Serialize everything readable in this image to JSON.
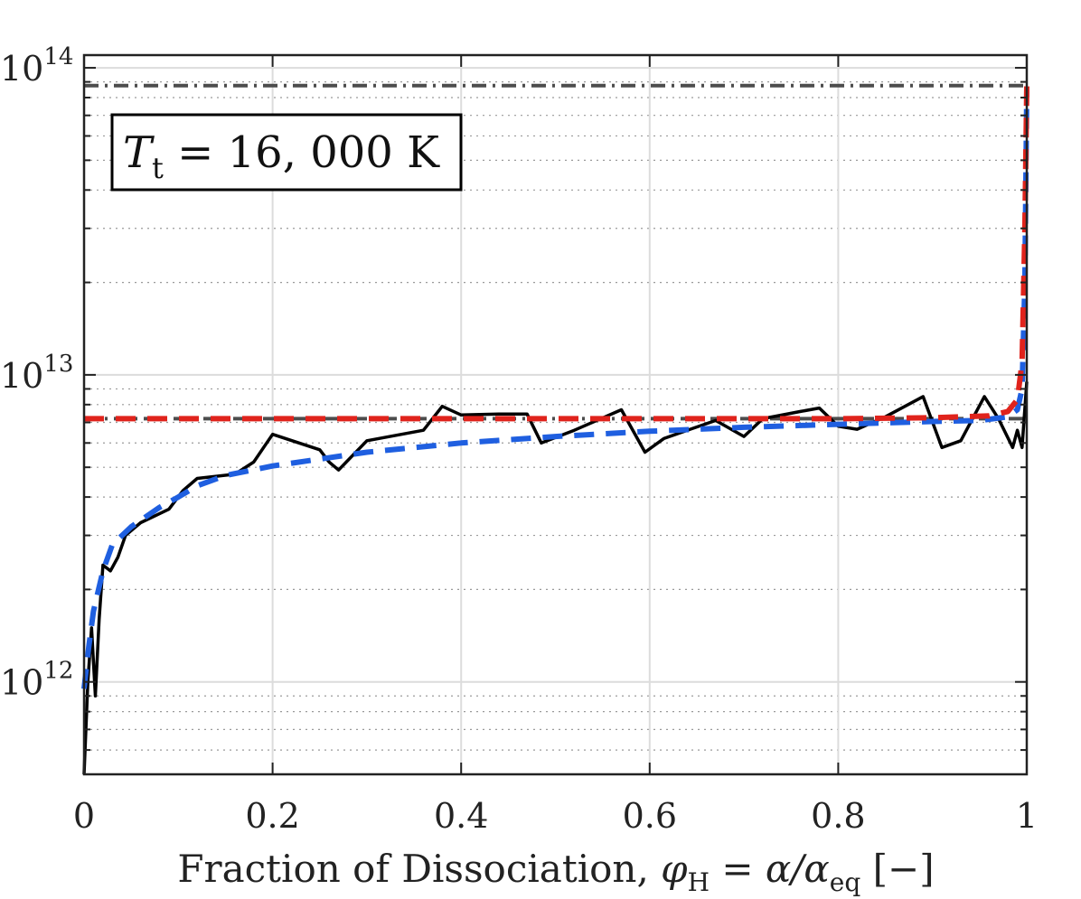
{
  "chart_data": {
    "type": "line",
    "xlabel_parts": {
      "main": "Fraction of Dissociation, ",
      "phi": "φ",
      "phi_sub": "H",
      "eq": " = α/α",
      "alpha_sub": "eq",
      "unit": " [−]"
    },
    "xlim": [
      0,
      1
    ],
    "ylim": [
      500000000000.0,
      110000000000000.0
    ],
    "yscale": "log",
    "x_ticks": [
      0,
      0.2,
      0.4,
      0.6,
      0.8,
      1
    ],
    "x_tick_labels": [
      "0",
      "0.2",
      "0.4",
      "0.6",
      "0.8",
      "1"
    ],
    "y_ticks": [
      1000000000000.0,
      10000000000000.0,
      100000000000000.0
    ],
    "y_tick_base": [
      "10",
      "10",
      "10"
    ],
    "y_tick_exp": [
      "12",
      "13",
      "14"
    ],
    "grid": true,
    "annotation": {
      "T": "T",
      "sub": "t",
      "rest": " = 16, 000 K"
    },
    "series": [
      {
        "name": "black-solid",
        "color": "#000000",
        "style": "solid",
        "x": [
          0,
          0.004,
          0.008,
          0.012,
          0.016,
          0.02,
          0.028,
          0.036,
          0.044,
          0.06,
          0.09,
          0.105,
          0.12,
          0.16,
          0.18,
          0.2,
          0.25,
          0.26,
          0.27,
          0.3,
          0.36,
          0.38,
          0.4,
          0.44,
          0.47,
          0.485,
          0.52,
          0.57,
          0.595,
          0.615,
          0.64,
          0.67,
          0.7,
          0.72,
          0.76,
          0.78,
          0.8,
          0.82,
          0.85,
          0.89,
          0.91,
          0.93,
          0.955,
          0.97,
          0.985,
          0.99,
          0.995,
          1
        ],
        "y": [
          500000000000.0,
          1000000000000.0,
          1500000000000.0,
          900000000000.0,
          1600000000000.0,
          2400000000000.0,
          2300000000000.0,
          2550000000000.0,
          3000000000000.0,
          3300000000000.0,
          3650000000000.0,
          4200000000000.0,
          4600000000000.0,
          4750000000000.0,
          5200000000000.0,
          6400000000000.0,
          5700000000000.0,
          5200000000000.0,
          4900000000000.0,
          6100000000000.0,
          6600000000000.0,
          7900000000000.0,
          7400000000000.0,
          7450000000000.0,
          7450000000000.0,
          6000000000000.0,
          6600000000000.0,
          7700000000000.0,
          5600000000000.0,
          6200000000000.0,
          6600000000000.0,
          7100000000000.0,
          6300000000000.0,
          7200000000000.0,
          7600000000000.0,
          7800000000000.0,
          6800000000000.0,
          6650000000000.0,
          7300000000000.0,
          8500000000000.0,
          5800000000000.0,
          6100000000000.0,
          8500000000000.0,
          7200000000000.0,
          5800000000000.0,
          6600000000000.0,
          5800000000000.0,
          9500000000000.0
        ]
      },
      {
        "name": "blue-dashed",
        "color": "#1f5fe0",
        "style": "dashed",
        "x": [
          0,
          0.005,
          0.01,
          0.02,
          0.03,
          0.05,
          0.08,
          0.1,
          0.12,
          0.15,
          0.2,
          0.3,
          0.4,
          0.5,
          0.6,
          0.7,
          0.8,
          0.9,
          0.95,
          0.98,
          0.99,
          0.995,
          0.998,
          1
        ],
        "y": [
          950000000000.0,
          1300000000000.0,
          1700000000000.0,
          2300000000000.0,
          2800000000000.0,
          3200000000000.0,
          3700000000000.0,
          4000000000000.0,
          4350000000000.0,
          4700000000000.0,
          5050000000000.0,
          5600000000000.0,
          6000000000000.0,
          6300000000000.0,
          6550000000000.0,
          6750000000000.0,
          6900000000000.0,
          7050000000000.0,
          7100000000000.0,
          7300000000000.0,
          7700000000000.0,
          9000000000000.0,
          20000000000000.0,
          85000000000000.0
        ]
      },
      {
        "name": "red-dashed",
        "color": "#e0231c",
        "style": "dashed",
        "x": [
          0,
          0.2,
          0.4,
          0.6,
          0.8,
          0.9,
          0.96,
          0.98,
          0.99,
          0.995,
          0.998,
          1
        ],
        "y": [
          7200000000000.0,
          7200000000000.0,
          7200000000000.0,
          7200000000000.0,
          7200000000000.0,
          7250000000000.0,
          7350000000000.0,
          7600000000000.0,
          8300000000000.0,
          11000000000000.0,
          30000000000000.0,
          87000000000000.0
        ]
      },
      {
        "name": "gray-dashdot-upper",
        "color": "#4d4d4d",
        "style": "dashdot",
        "x": [
          0,
          1
        ],
        "y": [
          87500000000000.0,
          87500000000000.0
        ]
      },
      {
        "name": "gray-dashdot-lower",
        "color": "#4d4d4d",
        "style": "dashdot",
        "x": [
          0,
          1
        ],
        "y": [
          7200000000000.0,
          7200000000000.0
        ]
      }
    ]
  }
}
